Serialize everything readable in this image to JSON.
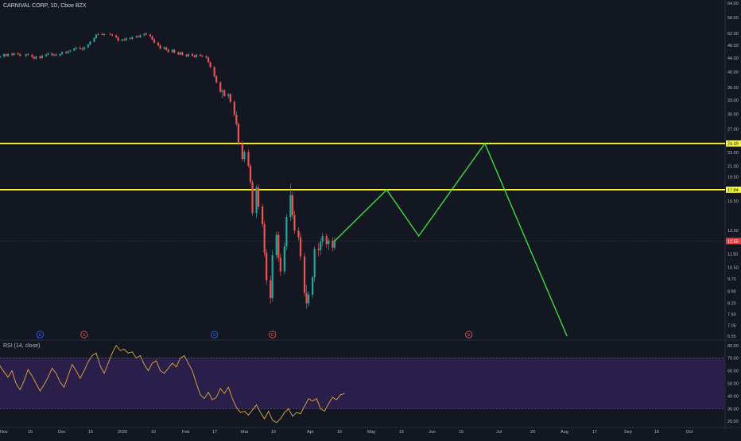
{
  "chart_data": [
    {
      "type": "candlestick",
      "title": "CARNIVAL CORP, 1D, Cboe BZX",
      "y_ticks": [
        "64.00",
        "58.00",
        "52.00",
        "48.00",
        "44.00",
        "40.00",
        "36.00",
        "33.00",
        "30.00",
        "27.00",
        "23.00",
        "21.00",
        "19.50",
        "16.50",
        "13.50",
        "11.50",
        "10.50",
        "9.70",
        "8.90",
        "8.20",
        "7.60",
        "7.05",
        "6.55"
      ],
      "y_tick_values": [
        64,
        58,
        52,
        48,
        44,
        40,
        36,
        33,
        30,
        27,
        23,
        21,
        19.5,
        16.5,
        13.5,
        11.5,
        10.5,
        9.7,
        8.9,
        8.2,
        7.6,
        7.05,
        6.55
      ],
      "x_ticks": [
        "Nov",
        "15",
        "Dec",
        "16",
        "2020",
        "16",
        "Feb",
        "17",
        "Mar",
        "16",
        "Apr",
        "16",
        "May",
        "15",
        "Jun",
        "15",
        "Jul",
        "20",
        "Aug",
        "17",
        "Sep",
        "16",
        "Oct"
      ],
      "price_labels": [
        {
          "value": 24.49,
          "text": "24.49",
          "color": "#f5f542"
        },
        {
          "value": 17.84,
          "text": "17.84",
          "color": "#f5f542"
        },
        {
          "value": 12.56,
          "text": "12.56",
          "color": "#e04040"
        }
      ],
      "horizontal_lines": [
        24.49,
        17.84
      ],
      "event_markers": [
        {
          "day": 20,
          "label": "D"
        },
        {
          "day": 42,
          "label": "E"
        },
        {
          "day": 107,
          "label": "D"
        },
        {
          "day": 136,
          "label": "E"
        },
        {
          "day": 234,
          "label": "E"
        }
      ],
      "candles": [
        [
          0,
          44.2,
          44.8,
          43.8,
          44.5
        ],
        [
          2,
          44.5,
          45.4,
          44.0,
          45.1
        ],
        [
          3,
          45.1,
          45.3,
          44.3,
          44.6
        ],
        [
          4,
          44.6,
          45.5,
          44.2,
          45.2
        ],
        [
          6,
          45.2,
          45.6,
          44.6,
          44.9
        ],
        [
          7,
          44.9,
          45.7,
          44.5,
          45.4
        ],
        [
          9,
          45.4,
          45.8,
          44.9,
          45.1
        ],
        [
          10,
          45.1,
          45.5,
          44.4,
          44.6
        ],
        [
          13,
          44.6,
          45.4,
          44.2,
          45.1
        ],
        [
          14,
          45.1,
          45.6,
          44.6,
          44.9
        ],
        [
          16,
          44.9,
          45.3,
          44.0,
          44.3
        ],
        [
          17,
          44.3,
          44.6,
          43.5,
          43.8
        ],
        [
          18,
          43.8,
          44.7,
          43.5,
          44.4
        ],
        [
          20,
          44.4,
          44.8,
          43.6,
          44.0
        ],
        [
          21,
          44.0,
          44.9,
          43.7,
          44.6
        ],
        [
          23,
          44.6,
          45.3,
          44.2,
          45.0
        ],
        [
          24,
          45.0,
          45.6,
          44.7,
          45.4
        ],
        [
          26,
          45.4,
          45.7,
          44.6,
          44.8
        ],
        [
          27,
          44.8,
          45.3,
          44.4,
          45.0
        ],
        [
          28,
          45.0,
          45.5,
          44.5,
          44.7
        ],
        [
          30,
          44.7,
          45.4,
          44.4,
          45.2
        ],
        [
          31,
          45.2,
          46.0,
          44.9,
          45.8
        ],
        [
          33,
          45.8,
          46.2,
          45.2,
          45.5
        ],
        [
          34,
          45.5,
          46.3,
          45.2,
          46.0
        ],
        [
          35,
          46.0,
          46.6,
          45.6,
          46.3
        ],
        [
          37,
          46.3,
          47.1,
          46.0,
          46.9
        ],
        [
          38,
          46.9,
          47.5,
          46.4,
          47.2
        ],
        [
          40,
          47.2,
          47.8,
          46.6,
          46.8
        ],
        [
          41,
          46.8,
          47.3,
          46.2,
          46.6
        ],
        [
          42,
          46.6,
          47.6,
          46.3,
          47.3
        ],
        [
          44,
          47.3,
          48.4,
          47.0,
          48.2
        ],
        [
          45,
          48.2,
          49.4,
          47.9,
          49.2
        ],
        [
          47,
          49.2,
          50.6,
          48.9,
          50.4
        ],
        [
          48,
          50.4,
          51.9,
          50.1,
          51.6
        ],
        [
          49,
          51.6,
          52.3,
          51.2,
          51.8
        ],
        [
          51,
          51.8,
          52.4,
          51.3,
          51.5
        ],
        [
          52,
          51.5,
          52.1,
          51.1,
          51.8
        ],
        [
          55,
          51.8,
          52.3,
          51.4,
          51.6
        ],
        [
          56,
          51.6,
          52.0,
          51.0,
          51.3
        ],
        [
          58,
          51.3,
          51.7,
          50.3,
          50.6
        ],
        [
          59,
          50.6,
          50.9,
          49.2,
          49.5
        ],
        [
          61,
          49.5,
          50.2,
          49.2,
          49.9
        ],
        [
          62,
          49.9,
          50.5,
          49.3,
          49.7
        ],
        [
          63,
          49.7,
          50.6,
          49.4,
          50.3
        ],
        [
          65,
          50.3,
          50.9,
          49.8,
          50.1
        ],
        [
          66,
          50.1,
          51.0,
          49.8,
          50.7
        ],
        [
          68,
          50.7,
          51.3,
          50.3,
          51.0
        ],
        [
          69,
          51.0,
          51.4,
          50.4,
          50.7
        ],
        [
          70,
          50.7,
          51.8,
          50.4,
          51.4
        ],
        [
          72,
          51.4,
          52.2,
          51.0,
          51.9
        ],
        [
          73,
          51.9,
          52.4,
          51.4,
          51.6
        ],
        [
          75,
          51.6,
          52.0,
          50.8,
          51.0
        ],
        [
          76,
          51.0,
          51.3,
          49.6,
          49.9
        ],
        [
          77,
          49.9,
          50.3,
          48.6,
          48.8
        ],
        [
          79,
          48.8,
          49.2,
          47.6,
          47.9
        ],
        [
          80,
          47.9,
          48.2,
          46.6,
          46.9
        ],
        [
          82,
          46.9,
          47.6,
          46.5,
          47.3
        ],
        [
          83,
          47.3,
          47.6,
          46.2,
          46.5
        ],
        [
          84,
          46.5,
          46.9,
          45.5,
          45.8
        ],
        [
          86,
          45.8,
          46.8,
          45.5,
          46.5
        ],
        [
          87,
          46.5,
          46.8,
          45.4,
          45.6
        ],
        [
          89,
          45.6,
          46.0,
          44.8,
          45.1
        ],
        [
          90,
          45.1,
          45.9,
          44.8,
          45.7
        ],
        [
          91,
          45.7,
          46.0,
          44.7,
          44.9
        ],
        [
          93,
          44.9,
          45.2,
          44.2,
          44.5
        ],
        [
          94,
          44.5,
          45.4,
          44.2,
          45.2
        ],
        [
          96,
          45.2,
          45.5,
          44.4,
          44.7
        ],
        [
          97,
          44.7,
          45.0,
          44.0,
          44.3
        ],
        [
          98,
          44.3,
          45.3,
          44.0,
          45.0
        ],
        [
          100,
          45.0,
          45.3,
          44.4,
          44.6
        ],
        [
          101,
          44.6,
          45.0,
          44.2,
          44.5
        ],
        [
          103,
          44.5,
          44.8,
          43.8,
          44.1
        ],
        [
          104,
          44.1,
          44.4,
          42.4,
          42.7
        ],
        [
          105,
          42.7,
          43.0,
          41.0,
          41.3
        ],
        [
          107,
          41.3,
          41.6,
          38.5,
          38.8
        ],
        [
          108,
          38.8,
          39.1,
          37.0,
          37.2
        ],
        [
          110,
          37.2,
          37.5,
          34.6,
          34.9
        ],
        [
          111,
          34.9,
          35.6,
          33.4,
          35.2
        ],
        [
          112,
          35.2,
          35.5,
          33.7,
          33.9
        ],
        [
          114,
          33.9,
          34.6,
          33.3,
          34.3
        ],
        [
          115,
          34.3,
          34.6,
          32.2,
          32.6
        ],
        [
          117,
          32.6,
          32.9,
          29.5,
          29.8
        ],
        [
          118,
          29.8,
          30.5,
          27.6,
          28.0
        ],
        [
          119,
          28.0,
          28.3,
          24.2,
          24.5
        ],
        [
          121,
          24.5,
          24.9,
          21.7,
          22.0
        ],
        [
          122,
          22.0,
          23.4,
          21.5,
          23.1
        ],
        [
          124,
          23.1,
          23.5,
          20.8,
          21.0
        ],
        [
          125,
          21.0,
          21.3,
          18.5,
          18.8
        ],
        [
          126,
          18.8,
          19.1,
          14.9,
          15.2
        ],
        [
          128,
          15.2,
          18.4,
          14.7,
          18.1
        ],
        [
          129,
          18.1,
          18.5,
          15.6,
          15.9
        ],
        [
          131,
          15.9,
          16.2,
          13.8,
          14.1
        ],
        [
          132,
          14.1,
          14.4,
          11.3,
          11.6
        ],
        [
          133,
          11.6,
          11.9,
          9.3,
          9.6
        ],
        [
          135,
          9.6,
          9.9,
          8.2,
          8.5
        ],
        [
          136,
          8.5,
          11.8,
          8.3,
          11.4
        ],
        [
          138,
          11.4,
          13.4,
          11.1,
          13.1
        ],
        [
          139,
          13.1,
          13.4,
          10.9,
          11.2
        ],
        [
          140,
          11.2,
          11.5,
          9.9,
          10.2
        ],
        [
          142,
          10.2,
          12.4,
          10.0,
          12.1
        ],
        [
          143,
          12.1,
          15.1,
          11.8,
          14.8
        ],
        [
          145,
          14.8,
          18.6,
          14.4,
          17.2
        ],
        [
          146,
          17.2,
          17.6,
          14.6,
          15.0
        ],
        [
          147,
          15.0,
          15.4,
          13.2,
          13.5
        ],
        [
          149,
          13.5,
          13.8,
          12.6,
          12.9
        ],
        [
          150,
          12.9,
          13.3,
          11.0,
          11.3
        ],
        [
          152,
          11.3,
          11.6,
          8.6,
          8.8
        ],
        [
          153,
          8.8,
          9.3,
          7.9,
          8.2
        ],
        [
          154,
          8.2,
          8.9,
          8.0,
          8.7
        ],
        [
          156,
          8.7,
          9.9,
          8.5,
          9.8
        ],
        [
          157,
          9.8,
          12.1,
          9.5,
          11.9
        ],
        [
          159,
          11.9,
          12.4,
          11.3,
          11.8
        ],
        [
          160,
          11.8,
          12.8,
          11.4,
          12.5
        ],
        [
          161,
          12.5,
          13.3,
          12.1,
          13.0
        ],
        [
          163,
          13.0,
          13.2,
          12.0,
          12.3
        ],
        [
          164,
          12.3,
          12.8,
          11.8,
          12.6
        ],
        [
          166,
          12.6,
          12.9,
          11.7,
          12.0
        ],
        [
          167,
          12.0,
          12.9,
          11.8,
          12.6
        ]
      ],
      "projection": [
        [
          167,
          12.56
        ],
        [
          193,
          17.84
        ],
        [
          209,
          13.0
        ],
        [
          242,
          24.49
        ],
        [
          283,
          6.55
        ]
      ],
      "ylim": [
        6.55,
        64.0
      ]
    },
    {
      "type": "line",
      "title": "RSI (14, close)",
      "y_ticks": [
        "80.00",
        "70.00",
        "60.00",
        "50.00",
        "40.00",
        "30.00",
        "20.00"
      ],
      "y_tick_values": [
        80,
        70,
        60,
        50,
        40,
        30,
        20
      ],
      "band": [
        30,
        70
      ],
      "ylim": [
        17,
        83
      ],
      "series_color": "#e0a93a",
      "x_days": [
        0,
        2,
        4,
        6,
        8,
        10,
        12,
        14,
        16,
        18,
        20,
        22,
        24,
        26,
        28,
        30,
        32,
        34,
        36,
        38,
        40,
        42,
        44,
        46,
        48,
        50,
        52,
        54,
        56,
        58,
        60,
        62,
        64,
        66,
        68,
        70,
        72,
        74,
        76,
        78,
        80,
        82,
        84,
        86,
        88,
        90,
        92,
        94,
        96,
        98,
        100,
        102,
        104,
        106,
        108,
        110,
        112,
        114,
        116,
        118,
        120,
        122,
        124,
        126,
        128,
        130,
        132,
        134,
        136,
        138,
        140,
        142,
        144,
        146,
        148,
        150,
        152,
        154,
        156,
        158,
        160,
        162,
        164,
        166,
        168,
        170,
        172
      ],
      "values": [
        64,
        59,
        55,
        60,
        50,
        45,
        52,
        61,
        56,
        50,
        44,
        49,
        55,
        62,
        58,
        51,
        47,
        56,
        65,
        60,
        54,
        60,
        67,
        72,
        74,
        64,
        58,
        66,
        74,
        80,
        76,
        77,
        74,
        75,
        70,
        72,
        65,
        60,
        66,
        68,
        60,
        58,
        62,
        66,
        63,
        70,
        72,
        66,
        60,
        50,
        41,
        38,
        43,
        37,
        39,
        46,
        42,
        47,
        38,
        31,
        27,
        28,
        25,
        29,
        33,
        27,
        22,
        28,
        21,
        19,
        22,
        27,
        30,
        24,
        27,
        26,
        32,
        38,
        36,
        38,
        30,
        28,
        34,
        39,
        37,
        41,
        42
      ]
    }
  ]
}
